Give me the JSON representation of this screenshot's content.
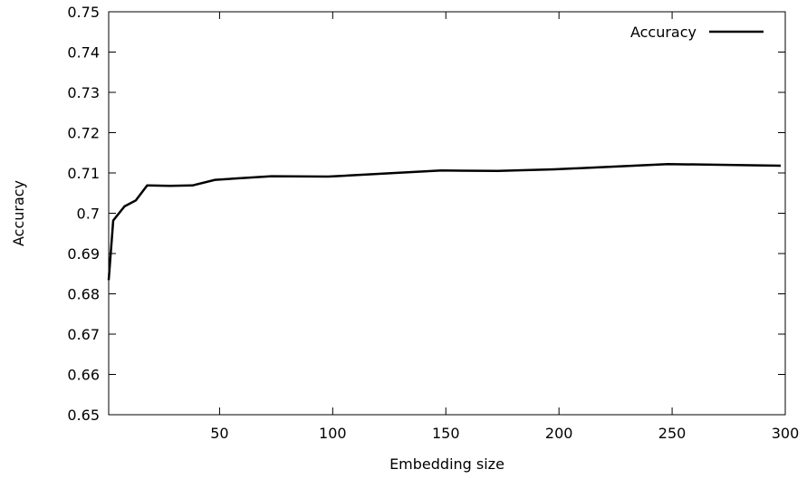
{
  "chart_data": {
    "type": "line",
    "xlabel": "Embedding size",
    "ylabel": "Accuracy",
    "xlim": [
      1,
      300
    ],
    "ylim": [
      0.65,
      0.75
    ],
    "x_ticks": [
      50,
      100,
      150,
      200,
      250,
      300
    ],
    "x_tick_labels": [
      "50",
      "100",
      "150",
      "200",
      "250",
      "300"
    ],
    "y_ticks": [
      0.65,
      0.66,
      0.67,
      0.68,
      0.69,
      0.7,
      0.71,
      0.72,
      0.73,
      0.74,
      0.75
    ],
    "y_tick_labels": [
      "0.65",
      "0.66",
      "0.67",
      "0.68",
      "0.69",
      "0.7",
      "0.71",
      "0.72",
      "0.73",
      "0.74",
      "0.75"
    ],
    "grid": false,
    "legend": {
      "position": "top-right",
      "entries": [
        "Accuracy"
      ]
    },
    "series": [
      {
        "name": "Accuracy",
        "color": "#000000",
        "x": [
          1,
          3,
          8,
          13,
          18,
          28,
          38,
          48,
          73,
          98,
          148,
          173,
          198,
          248,
          298
        ],
        "y": [
          0.6834,
          0.6982,
          0.7017,
          0.7032,
          0.7069,
          0.7068,
          0.7069,
          0.7083,
          0.7092,
          0.7091,
          0.7106,
          0.7105,
          0.7109,
          0.7122,
          0.7118
        ]
      }
    ]
  }
}
